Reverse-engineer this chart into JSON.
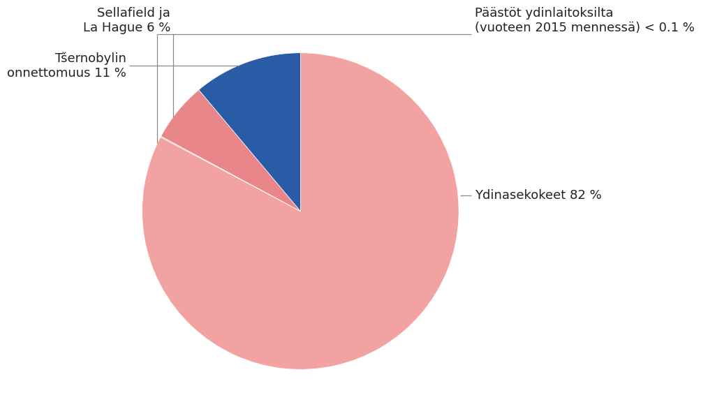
{
  "slices": [
    82,
    0.1,
    6,
    11
  ],
  "pie_colors": [
    "#F2A3A1",
    "#F2A3A1",
    "#E8868A",
    "#2A5BA6"
  ],
  "wedge_edge_color": "white",
  "wedge_linewidth": 0.5,
  "background_color": "#ffffff",
  "font_size": 13,
  "font_color": "#222222",
  "line_color": "#888888",
  "startangle": 90,
  "label_texts": [
    "Ydinasekokeet 82 %",
    "Päästöt ydinlaitoksilta\n(vuoteen 2015 mennessä) < 0.1 %",
    "Sellafield ja\nLa Hague 6 %",
    "Tšernobylin\nonnettomuus 11 %"
  ]
}
